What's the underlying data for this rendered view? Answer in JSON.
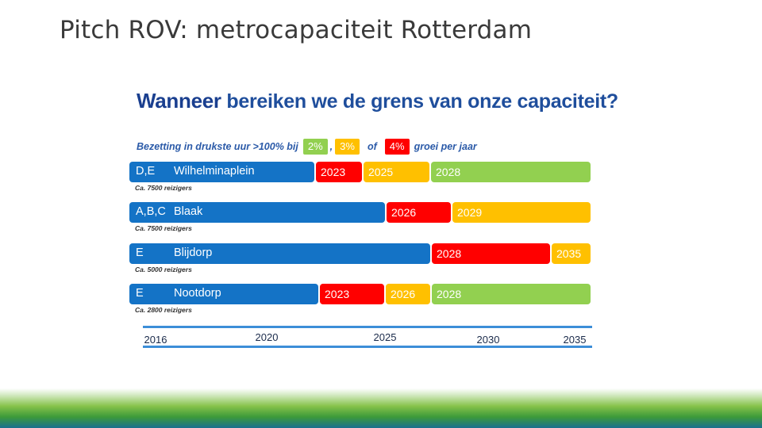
{
  "slide": {
    "title": "Pitch ROV: metrocapaciteit Rotterdam"
  },
  "chart_data": {
    "type": "gantt-timeline",
    "title_strong": "Wanneer",
    "title_rest": "bereiken we de grens van onze capaciteit?",
    "legend": {
      "prefix": "Bezetting in drukste uur >100% bij",
      "sep1": ",",
      "sep2": "of",
      "suffix": "groei per jaar",
      "items": [
        {
          "label": "2%",
          "color": "#92d050"
        },
        {
          "label": "3%",
          "color": "#ffc000"
        },
        {
          "label": "4%",
          "color": "#ff0000"
        }
      ]
    },
    "axis": {
      "min": 2016,
      "max": 2035,
      "ticks": [
        {
          "value": 2016,
          "label": "2016"
        },
        {
          "value": 2020,
          "label": "2020"
        },
        {
          "value": 2025,
          "label": "2025"
        },
        {
          "value": 2030,
          "label": "2030"
        },
        {
          "value": 2035,
          "label": "2035"
        }
      ]
    },
    "colors": {
      "blue": "#1473c6",
      "red": "#ff0000",
      "orange": "#ffc000",
      "green": "#92d050"
    },
    "routes": [
      {
        "code": "D,E",
        "station": "Wilhelminaplein",
        "riders": "Ca. 7500 reizigers",
        "segments": [
          {
            "color": "blue",
            "label": ""
          },
          {
            "color": "red",
            "label": "2023"
          },
          {
            "color": "orange",
            "label": "2025"
          },
          {
            "color": "green",
            "label": "2028"
          }
        ]
      },
      {
        "code": "A,B,C",
        "station": "Blaak",
        "riders": "Ca. 7500 reizigers",
        "segments": [
          {
            "color": "blue",
            "label": ""
          },
          {
            "color": "red",
            "label": "2026"
          },
          {
            "color": "orange",
            "label": "2029"
          }
        ]
      },
      {
        "code": "E",
        "station": "Blijdorp",
        "riders": "Ca. 5000 reizigers",
        "segments": [
          {
            "color": "blue",
            "label": ""
          },
          {
            "color": "red",
            "label": "2028"
          },
          {
            "color": "orange",
            "label": "2035"
          }
        ]
      },
      {
        "code": "E",
        "station": "Nootdorp",
        "riders": "Ca. 2800 reizigers",
        "segments": [
          {
            "color": "blue",
            "label": ""
          },
          {
            "color": "red",
            "label": "2023"
          },
          {
            "color": "orange",
            "label": "2026"
          },
          {
            "color": "green",
            "label": "2028"
          }
        ]
      }
    ]
  }
}
